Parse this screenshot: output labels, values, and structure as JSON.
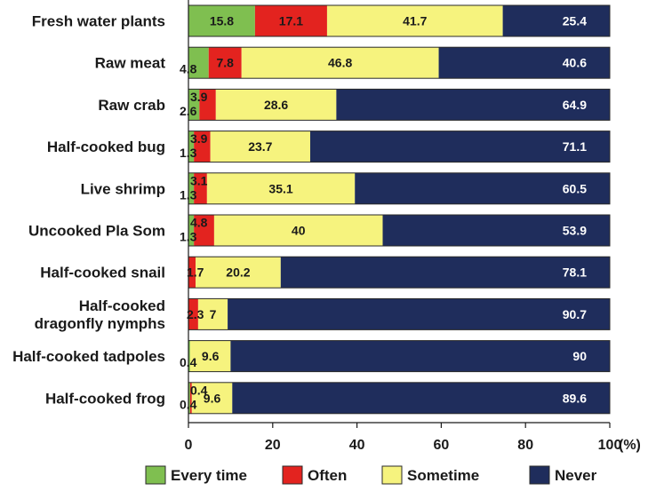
{
  "chart_data": {
    "type": "bar",
    "orientation": "horizontal",
    "stacked": true,
    "categories": [
      [
        "Fresh water plants"
      ],
      [
        "Raw meat"
      ],
      [
        "Raw crab"
      ],
      [
        "Half-cooked bug"
      ],
      [
        "Live shrimp"
      ],
      [
        "Uncooked Pla Som"
      ],
      [
        "Half-cooked snail"
      ],
      [
        "Half-cooked",
        "dragonfly nymphs"
      ],
      [
        "Half-cooked tadpoles"
      ],
      [
        "Half-cooked frog"
      ]
    ],
    "series": [
      {
        "name": "Every time",
        "color": "#7fbf50",
        "label_color": "#1a1a1a",
        "values": [
          15.8,
          4.8,
          2.6,
          1.3,
          1.3,
          1.3,
          0,
          0,
          0.4,
          0.4
        ],
        "labels": [
          "15.8",
          "4.8",
          "2.6",
          "1.3",
          "1.3",
          "1.3",
          "",
          "",
          "0.4",
          "0.4"
        ]
      },
      {
        "name": "Often",
        "color": "#e3231f",
        "label_color": "#1a1a1a",
        "values": [
          17.1,
          7.8,
          3.9,
          3.9,
          3.1,
          4.8,
          1.7,
          2.3,
          0,
          0.4
        ],
        "labels": [
          "17.1",
          "7.8",
          "3.9",
          "3.9",
          "3.1",
          "4.8",
          "1.7",
          "2.3",
          "",
          "0.4"
        ]
      },
      {
        "name": "Sometime",
        "color": "#f6f37e",
        "label_color": "#1a1a1a",
        "values": [
          41.7,
          46.8,
          28.6,
          23.7,
          35.1,
          40,
          20.2,
          7,
          9.6,
          9.6
        ],
        "labels": [
          "41.7",
          "46.8",
          "28.6",
          "23.7",
          "35.1",
          "40",
          "20.2",
          "7",
          "9.6",
          "9.6"
        ]
      },
      {
        "name": "Never",
        "color": "#1f2d5c",
        "label_color": "#ffffff",
        "values": [
          25.4,
          40.6,
          64.9,
          71.1,
          60.5,
          53.9,
          78.1,
          90.7,
          90,
          89.6
        ],
        "labels": [
          "25.4",
          "40.6",
          "64.9",
          "71.1",
          "60.5",
          "53.9",
          "78.1",
          "90.7",
          "90",
          "89.6"
        ]
      }
    ],
    "x_ticks": [
      "0",
      "20",
      "40",
      "60",
      "80",
      "100"
    ],
    "x_unit_label": "(%)",
    "xlim": [
      0,
      100
    ],
    "legend": "bottom"
  }
}
